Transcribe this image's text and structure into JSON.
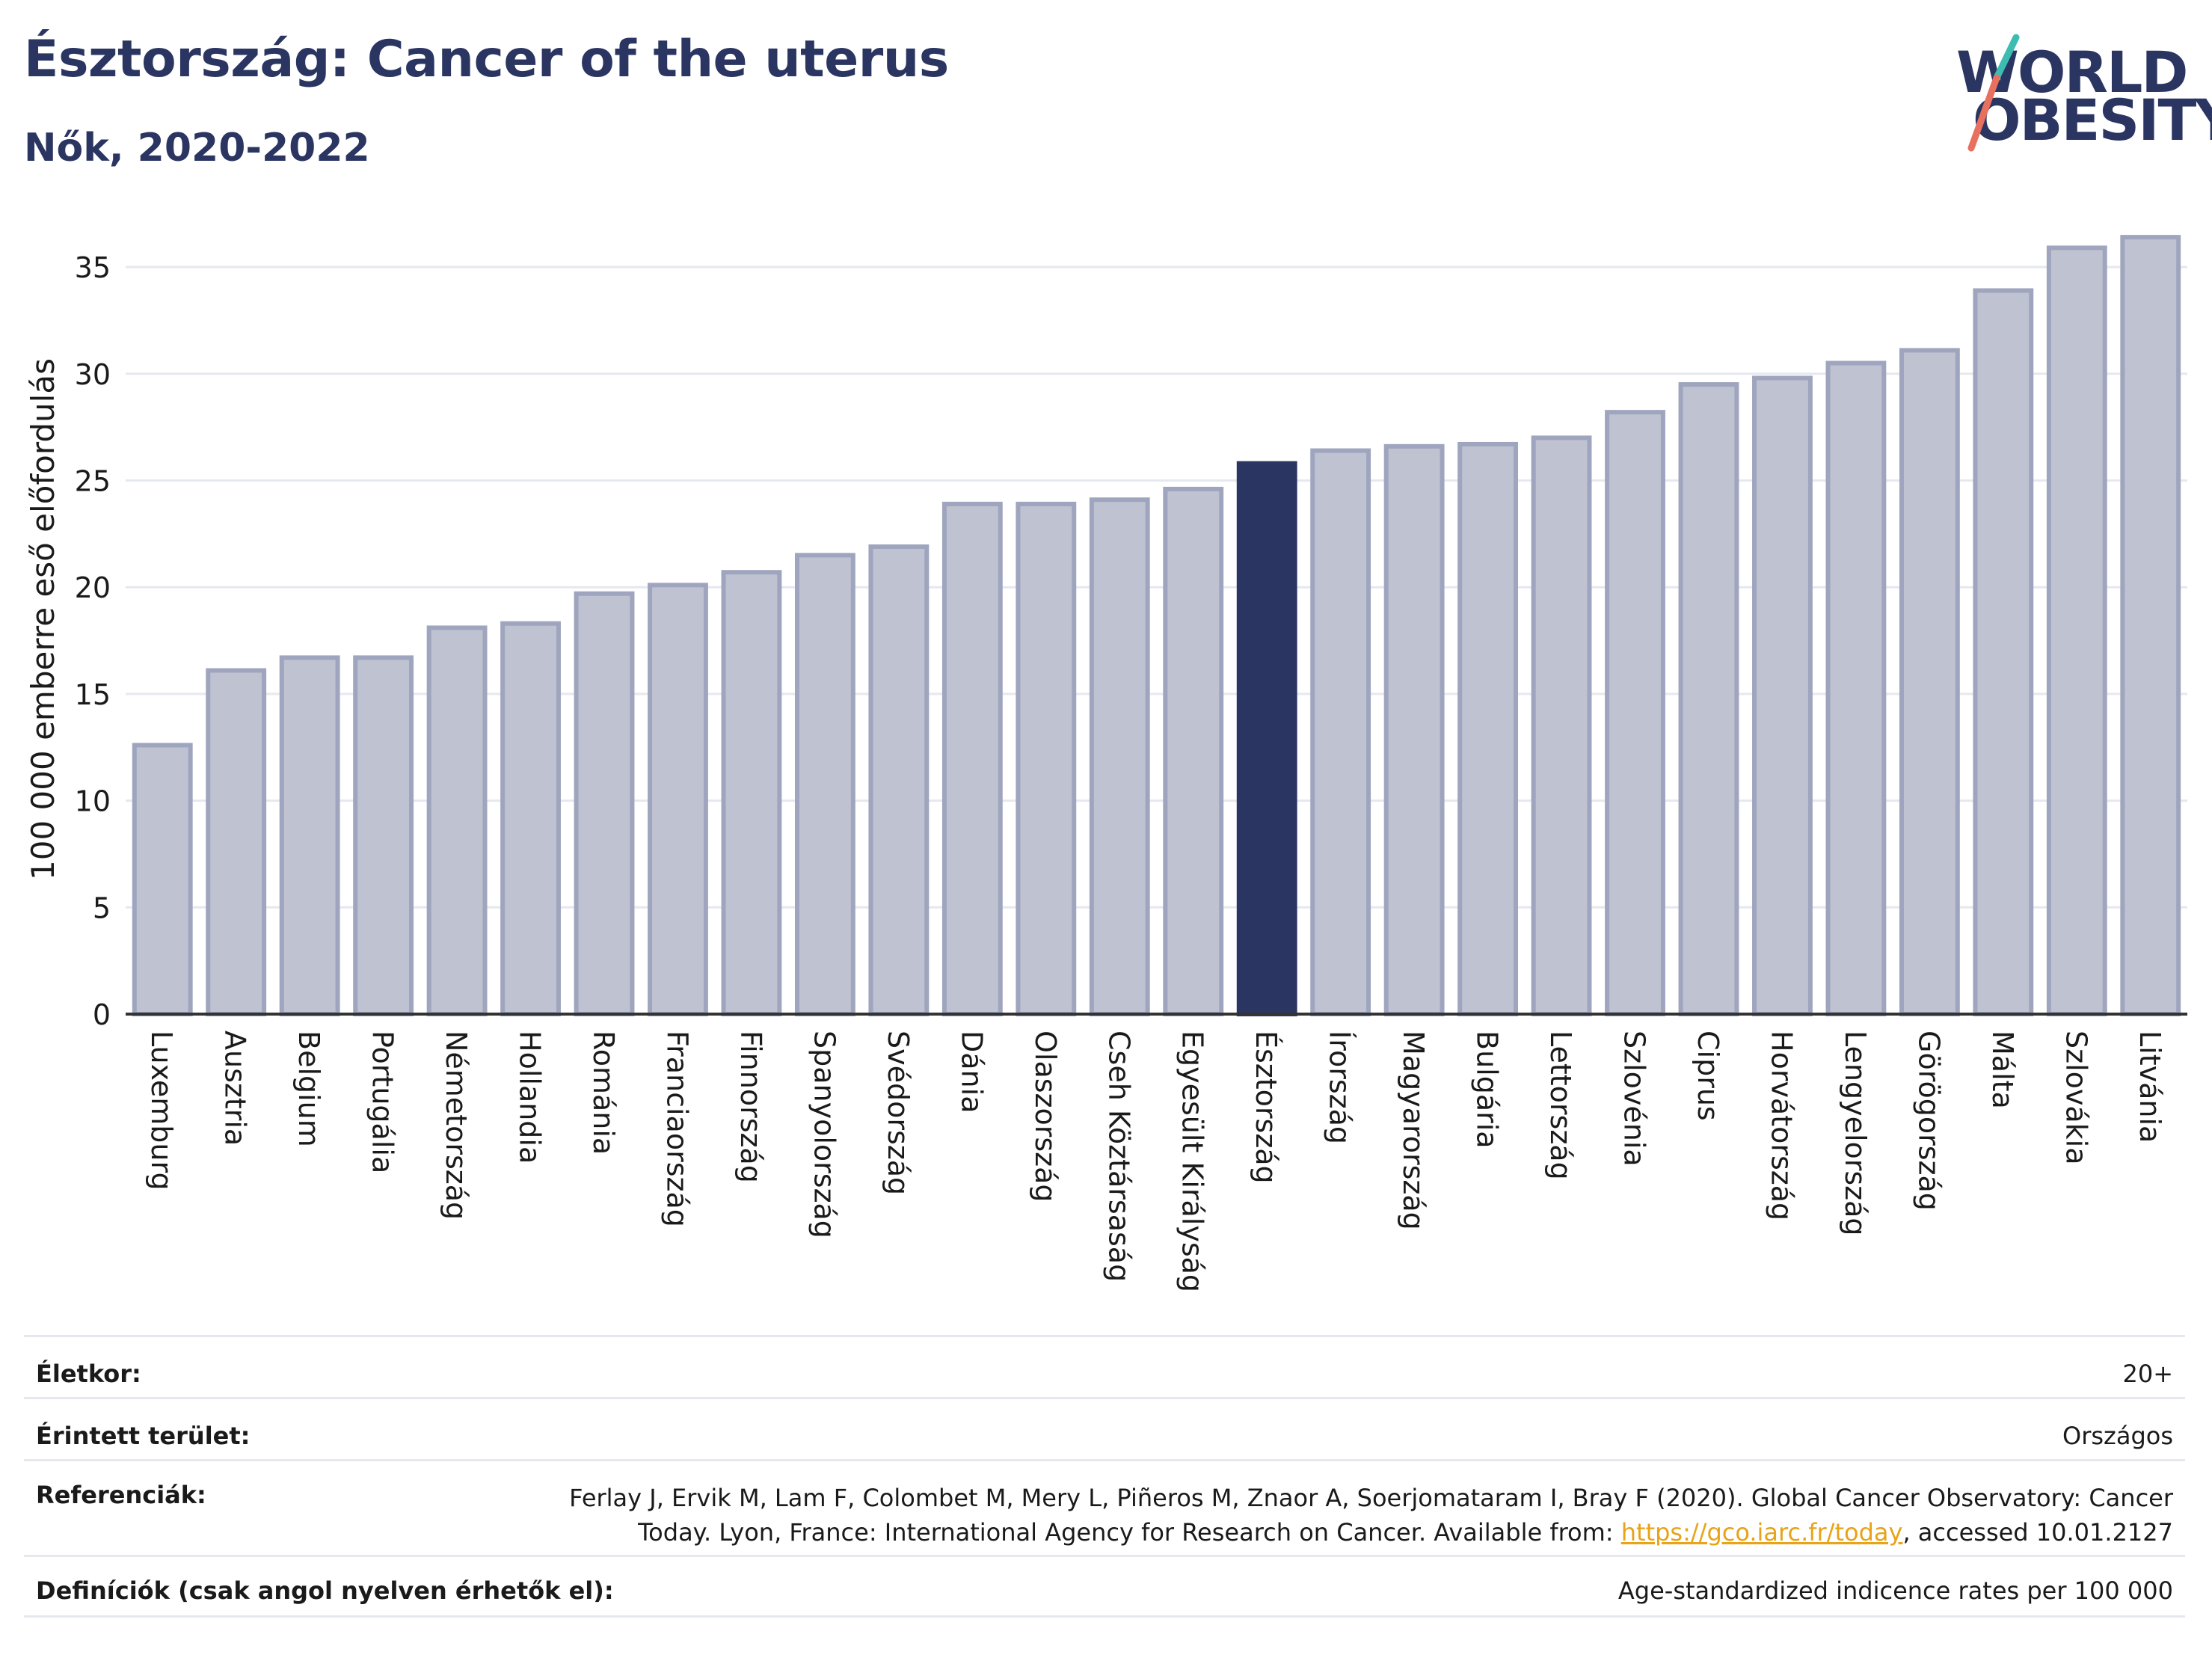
{
  "title": "Észtország: Cancer of the uterus",
  "subtitle": "Nők, 2020-2022",
  "logo": {
    "line1": "WORLD",
    "line2": "OBESITY"
  },
  "colors": {
    "bar": "#bfc2d0",
    "bar_stroke": "#9fa5be",
    "highlight": "#2b3561",
    "title": "#2b3561",
    "grid": "#e6e8f0",
    "logo_teal": "#3dbdb0",
    "logo_coral": "#e8705e"
  },
  "chart_data": {
    "type": "bar",
    "ylabel": "100 000 emberre eső előfordulás",
    "ylim": [
      0,
      37
    ],
    "yticks": [
      0,
      5,
      10,
      15,
      20,
      25,
      30,
      35
    ],
    "grid": true,
    "highlight": "Észtország",
    "categories": [
      "Luxemburg",
      "Ausztria",
      "Belgium",
      "Portugália",
      "Németország",
      "Hollandia",
      "Románia",
      "Franciaország",
      "Finnország",
      "Spanyolország",
      "Svédország",
      "Dánia",
      "Olaszország",
      "Cseh Köztársaság",
      "Egyesült Királyság",
      "Észtország",
      "Írország",
      "Magyarország",
      "Bulgária",
      "Lettország",
      "Szlovénia",
      "Ciprus",
      "Horvátország",
      "Lengyelország",
      "Görögország",
      "Málta",
      "Szlovákia",
      "Litvánia"
    ],
    "values": [
      12.6,
      16.1,
      16.7,
      16.7,
      18.1,
      18.3,
      19.7,
      20.1,
      20.7,
      21.5,
      21.9,
      23.9,
      23.9,
      24.1,
      24.6,
      25.8,
      26.4,
      26.6,
      26.7,
      27.0,
      28.2,
      29.5,
      29.8,
      30.5,
      31.1,
      33.9,
      35.9,
      36.4
    ]
  },
  "info": {
    "age_label": "Életkor:",
    "age_value": "20+",
    "area_label": "Érintett terület:",
    "area_value": "Országos",
    "ref_label": "Referenciák:",
    "ref_line1": "Ferlay J, Ervik M, Lam F, Colombet M, Mery L, Piñeros M, Znaor A, Soerjomataram I, Bray F (2020). Global Cancer Observatory: Cancer",
    "ref_line2_pre": "Today. Lyon, France: International Agency for Research on Cancer. Available from: ",
    "ref_link": "https://gco.iarc.fr/today",
    "ref_line2_post": ", accessed 10.01.2127",
    "def_label": "Definíciók (csak angol nyelven érhetők el):",
    "def_value": "Age-standardized indicence rates per 100 000"
  }
}
